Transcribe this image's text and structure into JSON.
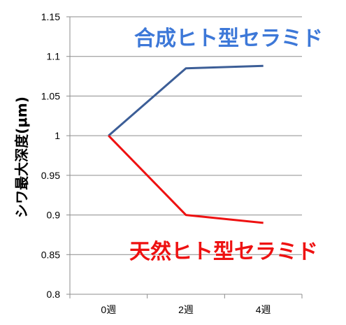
{
  "chart_data": {
    "type": "line",
    "title": "",
    "xlabel": "",
    "ylabel": "シワ最大深度(μm)",
    "categories": [
      "0週",
      "2週",
      "4週"
    ],
    "ylim": [
      0.8,
      1.15
    ],
    "yticks": [
      0.8,
      0.85,
      0.9,
      0.95,
      1,
      1.05,
      1.1,
      1.15
    ],
    "ytick_labels": [
      "0.8",
      "0.85",
      "0.9",
      "0.95",
      "1",
      "1.05",
      "1.1",
      "1.15"
    ],
    "grid": true,
    "series": [
      {
        "name": "合成ヒト型セラミド",
        "values": [
          1.0,
          1.085,
          1.088
        ],
        "color": "#3c5e97",
        "label_color": "#3d78d8"
      },
      {
        "name": "天然ヒト型セラミド",
        "values": [
          1.0,
          0.9,
          0.89
        ],
        "color": "#ee1111",
        "label_color": "#ee1111"
      }
    ]
  }
}
